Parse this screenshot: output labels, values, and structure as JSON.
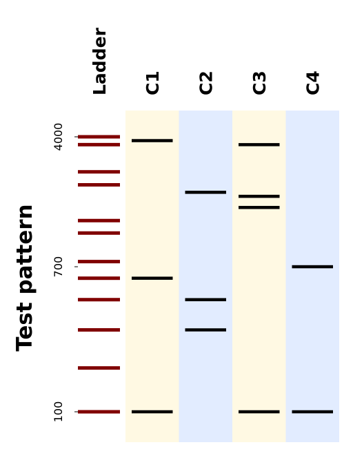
{
  "chart_data": {
    "type": "gel",
    "title": "Test pattern",
    "ladder": {
      "label": "Ladder",
      "color": "#800000",
      "bands": [
        4000,
        3600,
        2500,
        2100,
        1300,
        1100,
        750,
        600,
        450,
        300,
        180,
        100
      ]
    },
    "lanes": [
      {
        "label": "C1",
        "background": "#fff9e3",
        "bands": [
          3800,
          600,
          100
        ]
      },
      {
        "label": "C2",
        "background": "#e2ecff",
        "bands": [
          1900,
          450,
          300
        ]
      },
      {
        "label": "C3",
        "background": "#fff9e3",
        "bands": [
          3600,
          1800,
          1550,
          100
        ]
      },
      {
        "label": "C4",
        "background": "#e2ecff",
        "bands": [
          700,
          100
        ]
      }
    ],
    "y_axis": {
      "scale": "log",
      "ticks": [
        {
          "value": 4000,
          "label": "4000"
        },
        {
          "value": 700,
          "label": "700"
        },
        {
          "value": 100,
          "label": "100"
        }
      ]
    },
    "band_color": "#000000",
    "legend": "none",
    "grid": false
  }
}
